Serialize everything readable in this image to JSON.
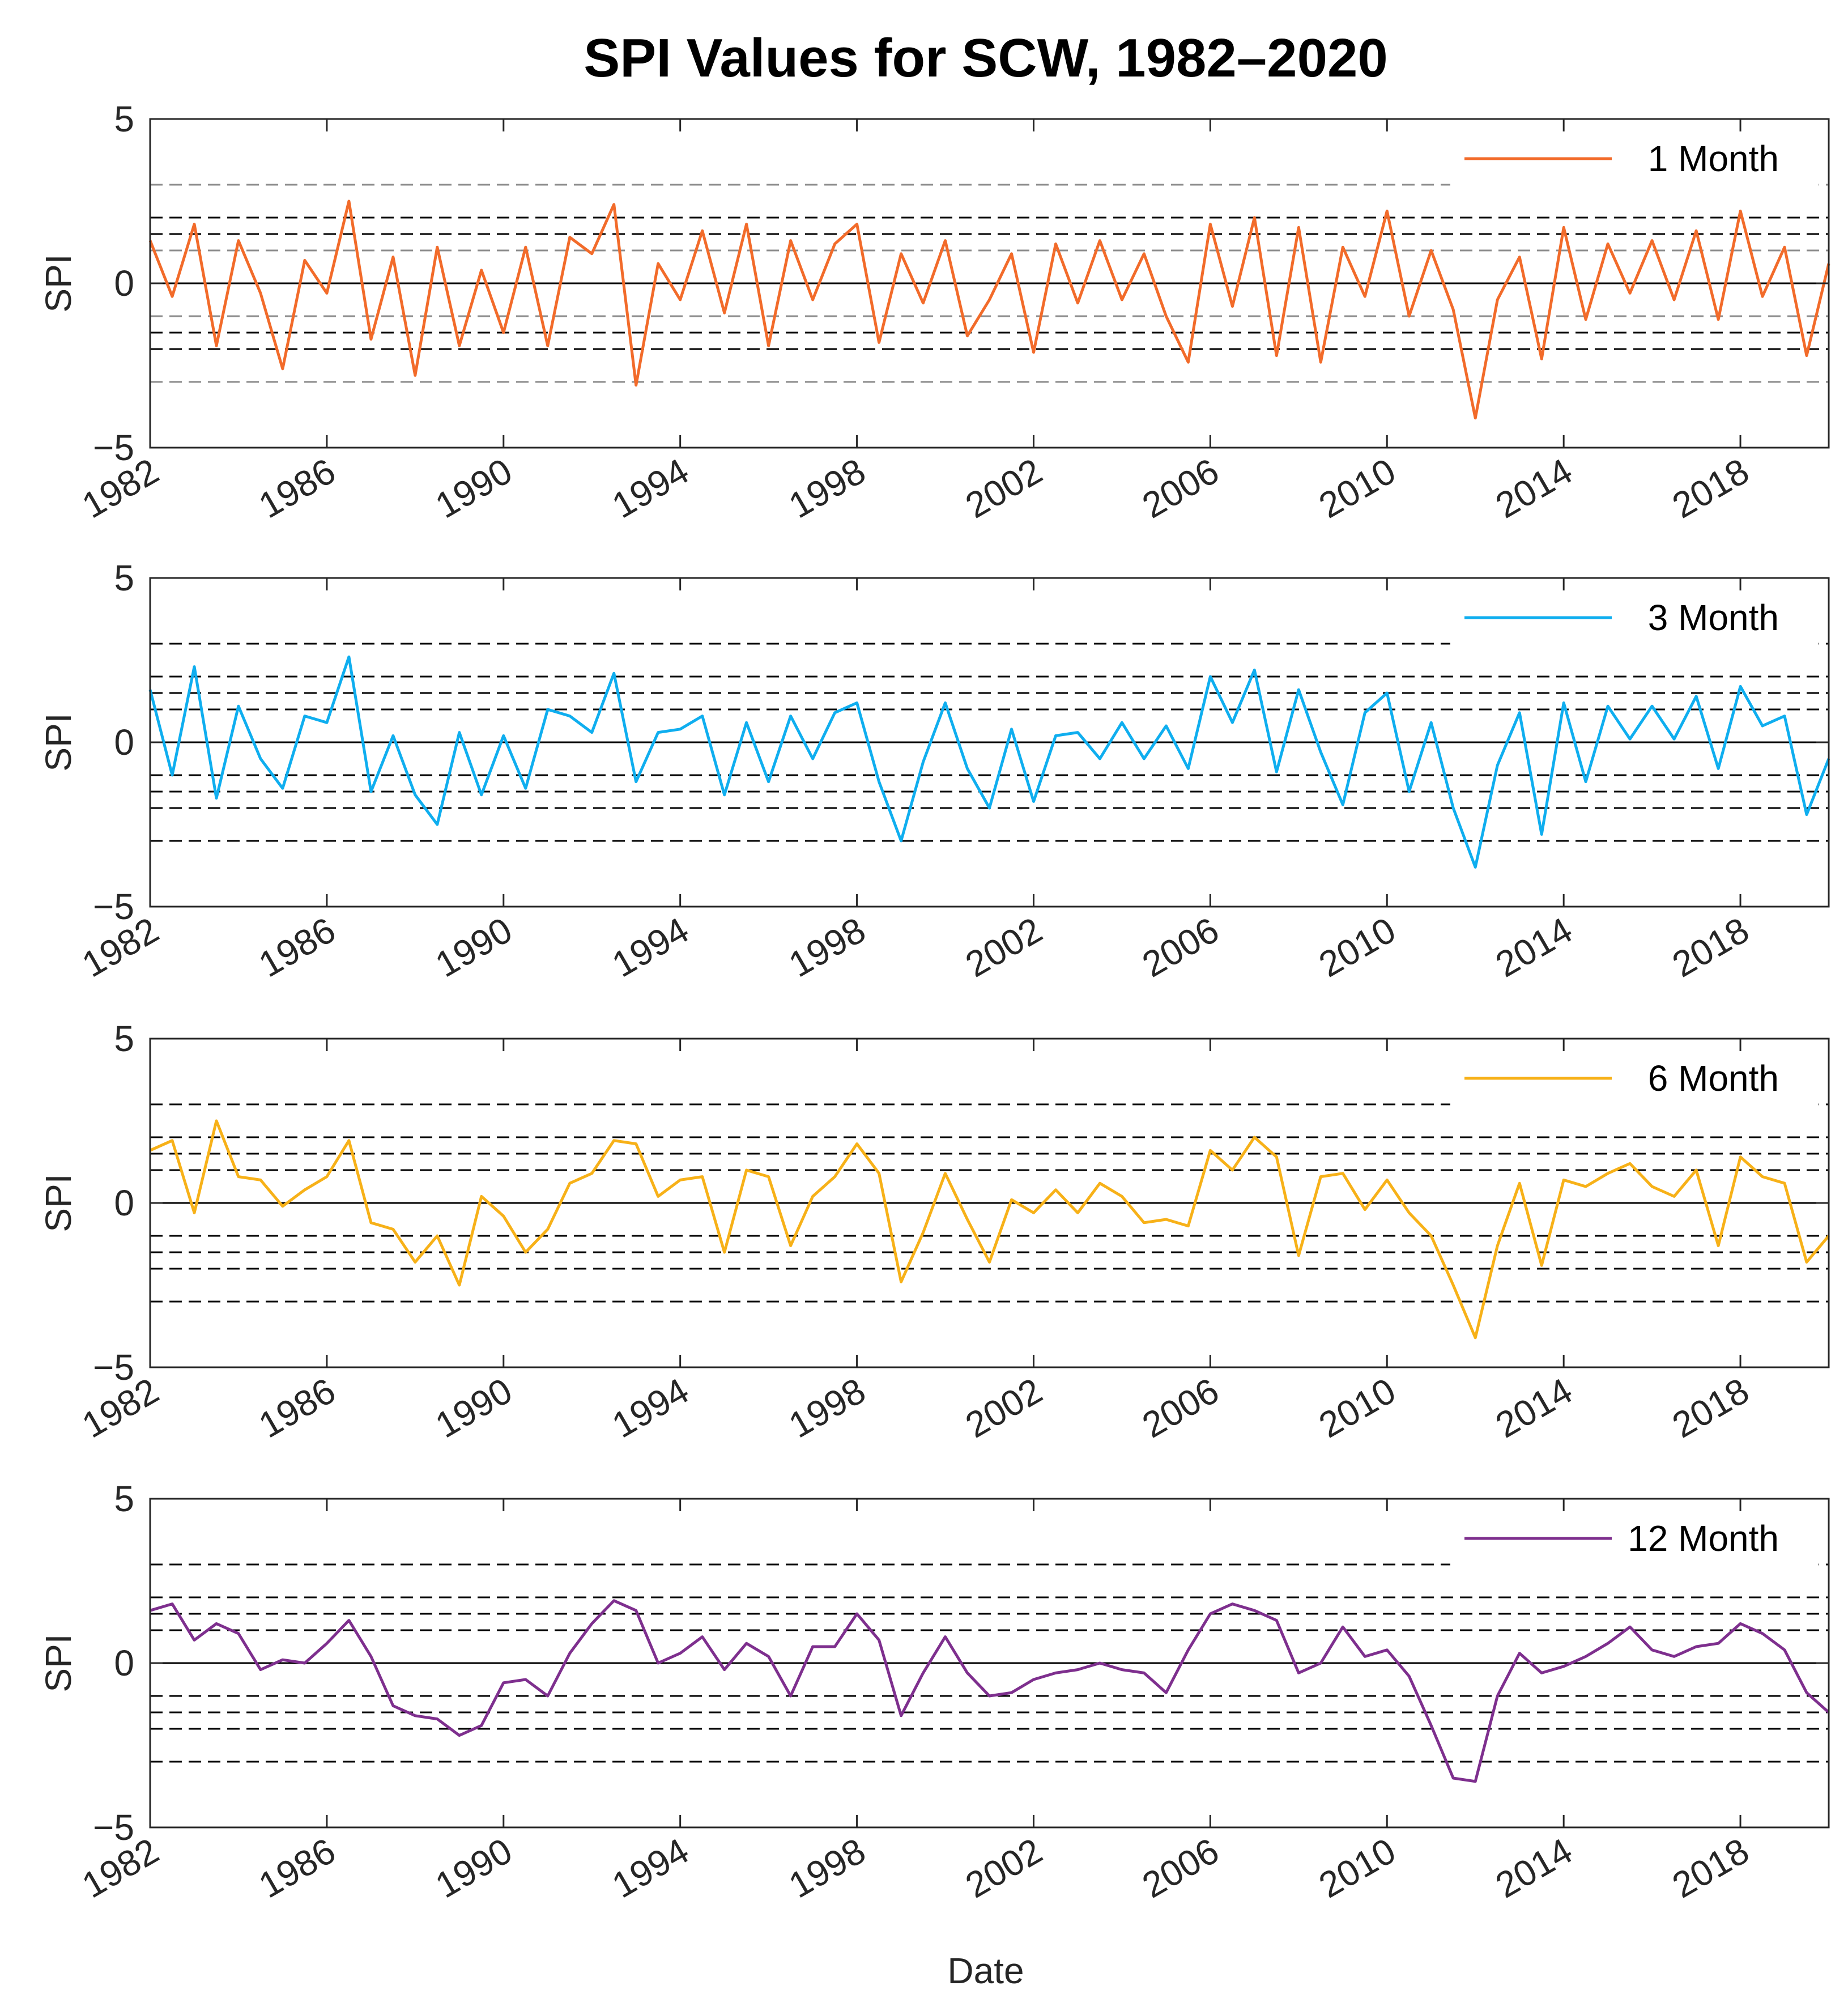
{
  "title": "SPI Values for SCW, 1982–2020",
  "xlabel": "Date",
  "chart_data": [
    {
      "type": "line",
      "legend": "1 Month",
      "color": "#F26B2A",
      "ylabel": "SPI",
      "xlim": [
        1982,
        2020
      ],
      "ylim": [
        -5,
        5
      ],
      "yticks": [
        "5",
        "0",
        "−5"
      ],
      "xticks": [
        "1982",
        "1986",
        "1990",
        "1994",
        "1998",
        "2002",
        "2006",
        "2010",
        "2014",
        "2018"
      ],
      "legend_position": "top-right",
      "reference_lines": [
        3,
        2,
        1.5,
        1,
        0,
        -1,
        -1.5,
        -2,
        -3
      ],
      "x": [
        1982.0,
        1982.5,
        1983.0,
        1983.5,
        1984.0,
        1984.5,
        1985.0,
        1985.5,
        1986.0,
        1986.5,
        1987.0,
        1987.5,
        1988.0,
        1988.5,
        1989.0,
        1989.5,
        1990.0,
        1990.5,
        1991.0,
        1991.5,
        1992.0,
        1992.5,
        1993.0,
        1993.5,
        1994.0,
        1994.5,
        1995.0,
        1995.5,
        1996.0,
        1996.5,
        1997.0,
        1997.5,
        1998.0,
        1998.5,
        1999.0,
        1999.5,
        2000.0,
        2000.5,
        2001.0,
        2001.5,
        2002.0,
        2002.5,
        2003.0,
        2003.5,
        2004.0,
        2004.5,
        2005.0,
        2005.5,
        2006.0,
        2006.5,
        2007.0,
        2007.5,
        2008.0,
        2008.5,
        2009.0,
        2009.5,
        2010.0,
        2010.5,
        2011.0,
        2011.5,
        2012.0,
        2012.5,
        2013.0,
        2013.5,
        2014.0,
        2014.5,
        2015.0,
        2015.5,
        2016.0,
        2016.5,
        2017.0,
        2017.5,
        2018.0,
        2018.5,
        2019.0,
        2019.5,
        2020.0
      ],
      "y": [
        1.3,
        -0.4,
        1.8,
        -1.9,
        1.3,
        -0.3,
        -2.6,
        0.7,
        -0.3,
        2.5,
        -1.7,
        0.8,
        -2.8,
        1.1,
        -1.9,
        0.4,
        -1.5,
        1.1,
        -1.9,
        1.4,
        0.9,
        2.4,
        -3.1,
        0.6,
        -0.5,
        1.6,
        -0.9,
        1.8,
        -1.9,
        1.3,
        -0.5,
        1.2,
        1.8,
        -1.8,
        0.9,
        -0.6,
        1.3,
        -1.6,
        -0.5,
        0.9,
        -2.1,
        1.2,
        -0.6,
        1.3,
        -0.5,
        0.9,
        -1.0,
        -2.4,
        1.8,
        -0.7,
        2.0,
        -2.2,
        1.7,
        -2.4,
        1.1,
        -0.4,
        2.2,
        -1.0,
        1.0,
        -0.8,
        -4.1,
        -0.5,
        0.8,
        -2.3,
        1.7,
        -1.1,
        1.2,
        -0.3,
        1.3,
        -0.5,
        1.6,
        -1.1,
        2.2,
        -0.4,
        1.1,
        -2.2,
        0.6
      ]
    },
    {
      "type": "line",
      "legend": "3 Month",
      "color": "#0FAEEF",
      "ylabel": "SPI",
      "xlim": [
        1982,
        2020
      ],
      "ylim": [
        -5,
        5
      ],
      "yticks": [
        "5",
        "0",
        "−5"
      ],
      "xticks": [
        "1982",
        "1986",
        "1990",
        "1994",
        "1998",
        "2002",
        "2006",
        "2010",
        "2014",
        "2018"
      ],
      "legend_position": "top-right",
      "reference_lines": [
        3,
        2,
        1.5,
        1,
        0,
        -1,
        -1.5,
        -2,
        -3
      ],
      "x": [
        1982.0,
        1982.5,
        1983.0,
        1983.5,
        1984.0,
        1984.5,
        1985.0,
        1985.5,
        1986.0,
        1986.5,
        1987.0,
        1987.5,
        1988.0,
        1988.5,
        1989.0,
        1989.5,
        1990.0,
        1990.5,
        1991.0,
        1991.5,
        1992.0,
        1992.5,
        1993.0,
        1993.5,
        1994.0,
        1994.5,
        1995.0,
        1995.5,
        1996.0,
        1996.5,
        1997.0,
        1997.5,
        1998.0,
        1998.5,
        1999.0,
        1999.5,
        2000.0,
        2000.5,
        2001.0,
        2001.5,
        2002.0,
        2002.5,
        2003.0,
        2003.5,
        2004.0,
        2004.5,
        2005.0,
        2005.5,
        2006.0,
        2006.5,
        2007.0,
        2007.5,
        2008.0,
        2008.5,
        2009.0,
        2009.5,
        2010.0,
        2010.5,
        2011.0,
        2011.5,
        2012.0,
        2012.5,
        2013.0,
        2013.5,
        2014.0,
        2014.5,
        2015.0,
        2015.5,
        2016.0,
        2016.5,
        2017.0,
        2017.5,
        2018.0,
        2018.5,
        2019.0,
        2019.5,
        2020.0
      ],
      "y": [
        1.6,
        -1.0,
        2.3,
        -1.7,
        1.1,
        -0.5,
        -1.4,
        0.8,
        0.6,
        2.6,
        -1.5,
        0.2,
        -1.6,
        -2.5,
        0.3,
        -1.6,
        0.2,
        -1.4,
        1.0,
        0.8,
        0.3,
        2.1,
        -1.2,
        0.3,
        0.4,
        0.8,
        -1.6,
        0.6,
        -1.2,
        0.8,
        -0.5,
        0.9,
        1.2,
        -1.2,
        -3.0,
        -0.6,
        1.2,
        -0.8,
        -2.0,
        0.4,
        -1.8,
        0.2,
        0.3,
        -0.5,
        0.6,
        -0.5,
        0.5,
        -0.8,
        2.0,
        0.6,
        2.2,
        -0.9,
        1.6,
        -0.3,
        -1.9,
        0.9,
        1.5,
        -1.5,
        0.6,
        -2.0,
        -3.8,
        -0.7,
        0.9,
        -2.8,
        1.2,
        -1.2,
        1.1,
        0.1,
        1.1,
        0.1,
        1.4,
        -0.8,
        1.7,
        0.5,
        0.8,
        -2.2,
        -0.5
      ]
    },
    {
      "type": "line",
      "legend": "6 Month",
      "color": "#F7B118",
      "ylabel": "SPI",
      "xlim": [
        1982,
        2020
      ],
      "ylim": [
        -5,
        5
      ],
      "yticks": [
        "5",
        "0",
        "−5"
      ],
      "xticks": [
        "1982",
        "1986",
        "1990",
        "1994",
        "1998",
        "2002",
        "2006",
        "2010",
        "2014",
        "2018"
      ],
      "legend_position": "top-right",
      "reference_lines": [
        3,
        2,
        1.5,
        1,
        0,
        -1,
        -1.5,
        -2,
        -3
      ],
      "x": [
        1982.0,
        1982.5,
        1983.0,
        1983.5,
        1984.0,
        1984.5,
        1985.0,
        1985.5,
        1986.0,
        1986.5,
        1987.0,
        1987.5,
        1988.0,
        1988.5,
        1989.0,
        1989.5,
        1990.0,
        1990.5,
        1991.0,
        1991.5,
        1992.0,
        1992.5,
        1993.0,
        1993.5,
        1994.0,
        1994.5,
        1995.0,
        1995.5,
        1996.0,
        1996.5,
        1997.0,
        1997.5,
        1998.0,
        1998.5,
        1999.0,
        1999.5,
        2000.0,
        2000.5,
        2001.0,
        2001.5,
        2002.0,
        2002.5,
        2003.0,
        2003.5,
        2004.0,
        2004.5,
        2005.0,
        2005.5,
        2006.0,
        2006.5,
        2007.0,
        2007.5,
        2008.0,
        2008.5,
        2009.0,
        2009.5,
        2010.0,
        2010.5,
        2011.0,
        2011.5,
        2012.0,
        2012.5,
        2013.0,
        2013.5,
        2014.0,
        2014.5,
        2015.0,
        2015.5,
        2016.0,
        2016.5,
        2017.0,
        2017.5,
        2018.0,
        2018.5,
        2019.0,
        2019.5,
        2020.0
      ],
      "y": [
        1.6,
        1.9,
        -0.3,
        2.5,
        0.8,
        0.7,
        -0.1,
        0.4,
        0.8,
        1.9,
        -0.6,
        -0.8,
        -1.8,
        -1.0,
        -2.5,
        0.2,
        -0.4,
        -1.5,
        -0.8,
        0.6,
        0.9,
        1.9,
        1.8,
        0.2,
        0.7,
        0.8,
        -1.5,
        1.0,
        0.8,
        -1.3,
        0.2,
        0.8,
        1.8,
        0.9,
        -2.4,
        -0.9,
        0.9,
        -0.5,
        -1.8,
        0.1,
        -0.3,
        0.4,
        -0.3,
        0.6,
        0.2,
        -0.6,
        -0.5,
        -0.7,
        1.6,
        1.0,
        2.0,
        1.4,
        -1.6,
        0.8,
        0.9,
        -0.2,
        0.7,
        -0.3,
        -1.0,
        -2.5,
        -4.1,
        -1.3,
        0.6,
        -1.9,
        0.7,
        0.5,
        0.9,
        1.2,
        0.5,
        0.2,
        1.0,
        -1.3,
        1.4,
        0.8,
        0.6,
        -1.8,
        -1.0
      ]
    },
    {
      "type": "line",
      "legend": "12 Month",
      "color": "#7E2F8E",
      "ylabel": "SPI",
      "xlim": [
        1982,
        2020
      ],
      "ylim": [
        -5,
        5
      ],
      "yticks": [
        "5",
        "0",
        "−5"
      ],
      "xticks": [
        "1982",
        "1986",
        "1990",
        "1994",
        "1998",
        "2002",
        "2006",
        "2010",
        "2014",
        "2018"
      ],
      "legend_position": "top-right",
      "reference_lines": [
        3,
        2,
        1.5,
        1,
        0,
        -1,
        -1.5,
        -2,
        -3
      ],
      "x": [
        1982.0,
        1982.5,
        1983.0,
        1983.5,
        1984.0,
        1984.5,
        1985.0,
        1985.5,
        1986.0,
        1986.5,
        1987.0,
        1987.5,
        1988.0,
        1988.5,
        1989.0,
        1989.5,
        1990.0,
        1990.5,
        1991.0,
        1991.5,
        1992.0,
        1992.5,
        1993.0,
        1993.5,
        1994.0,
        1994.5,
        1995.0,
        1995.5,
        1996.0,
        1996.5,
        1997.0,
        1997.5,
        1998.0,
        1998.5,
        1999.0,
        1999.5,
        2000.0,
        2000.5,
        2001.0,
        2001.5,
        2002.0,
        2002.5,
        2003.0,
        2003.5,
        2004.0,
        2004.5,
        2005.0,
        2005.5,
        2006.0,
        2006.5,
        2007.0,
        2007.5,
        2008.0,
        2008.5,
        2009.0,
        2009.5,
        2010.0,
        2010.5,
        2011.0,
        2011.5,
        2012.0,
        2012.5,
        2013.0,
        2013.5,
        2014.0,
        2014.5,
        2015.0,
        2015.5,
        2016.0,
        2016.5,
        2017.0,
        2017.5,
        2018.0,
        2018.5,
        2019.0,
        2019.5,
        2020.0
      ],
      "y": [
        1.6,
        1.8,
        0.7,
        1.2,
        0.9,
        -0.2,
        0.1,
        0.0,
        0.6,
        1.3,
        0.2,
        -1.3,
        -1.6,
        -1.7,
        -2.2,
        -1.9,
        -0.6,
        -0.5,
        -1.0,
        0.3,
        1.2,
        1.9,
        1.6,
        0.0,
        0.3,
        0.8,
        -0.2,
        0.6,
        0.2,
        -1.0,
        0.5,
        0.5,
        1.5,
        0.7,
        -1.6,
        -0.3,
        0.8,
        -0.3,
        -1.0,
        -0.9,
        -0.5,
        -0.3,
        -0.2,
        0.0,
        -0.2,
        -0.3,
        -0.9,
        0.4,
        1.5,
        1.8,
        1.6,
        1.3,
        -0.3,
        0.0,
        1.1,
        0.2,
        0.4,
        -0.4,
        -1.9,
        -3.5,
        -3.6,
        -1.0,
        0.3,
        -0.3,
        -0.1,
        0.2,
        0.6,
        1.1,
        0.4,
        0.2,
        0.5,
        0.6,
        1.2,
        0.9,
        0.4,
        -0.9,
        -1.5
      ]
    }
  ]
}
